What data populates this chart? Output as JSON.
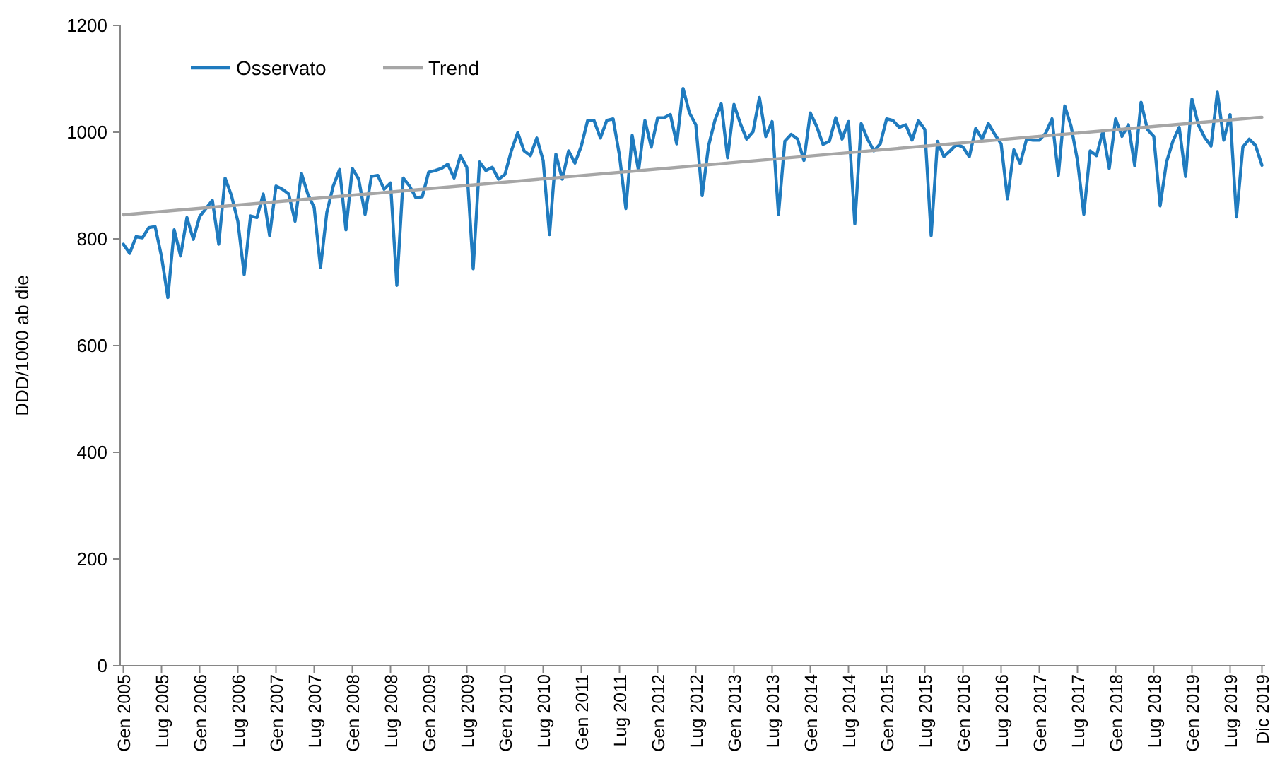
{
  "chart_data": {
    "type": "line",
    "ylabel": "DDD/1000 ab die",
    "ylim": [
      0,
      1200
    ],
    "yticks": [
      0,
      200,
      400,
      600,
      800,
      1000,
      1200
    ],
    "grid": false,
    "legend": "top left",
    "marker": "none",
    "line_style": "solid",
    "categories": [
      "Gen 2005",
      null,
      null,
      null,
      null,
      null,
      "Lug 2005",
      null,
      null,
      null,
      null,
      null,
      "Gen 2006",
      null,
      null,
      null,
      null,
      null,
      "Lug 2006",
      null,
      null,
      null,
      null,
      null,
      "Gen 2007",
      null,
      null,
      null,
      null,
      null,
      "Lug 2007",
      null,
      null,
      null,
      null,
      null,
      "Gen 2008",
      null,
      null,
      null,
      null,
      null,
      "Lug 2008",
      null,
      null,
      null,
      null,
      null,
      "Gen 2009",
      null,
      null,
      null,
      null,
      null,
      "Lug 2009",
      null,
      null,
      null,
      null,
      null,
      "Gen 2010",
      null,
      null,
      null,
      null,
      null,
      "Lug 2010",
      null,
      null,
      null,
      null,
      null,
      "Gen 2011",
      null,
      null,
      null,
      null,
      null,
      "Lug 2011",
      null,
      null,
      null,
      null,
      null,
      "Gen 2012",
      null,
      null,
      null,
      null,
      null,
      "Lug 2012",
      null,
      null,
      null,
      null,
      null,
      "Gen 2013",
      null,
      null,
      null,
      null,
      null,
      "Lug 2013",
      null,
      null,
      null,
      null,
      null,
      "Gen 2014",
      null,
      null,
      null,
      null,
      null,
      "Lug 2014",
      null,
      null,
      null,
      null,
      null,
      "Gen 2015",
      null,
      null,
      null,
      null,
      null,
      "Lug 2015",
      null,
      null,
      null,
      null,
      null,
      "Gen 2016",
      null,
      null,
      null,
      null,
      null,
      "Lug 2016",
      null,
      null,
      null,
      null,
      null,
      "Gen 2017",
      null,
      null,
      null,
      null,
      null,
      "Lug 2017",
      null,
      null,
      null,
      null,
      null,
      "Gen 2018",
      null,
      null,
      null,
      null,
      null,
      "Lug 2018",
      null,
      null,
      null,
      null,
      null,
      "Gen 2019",
      null,
      null,
      null,
      null,
      null,
      "Lug 2019",
      null,
      null,
      null,
      null,
      "Dic 2019"
    ],
    "series": [
      {
        "name": "Osservato",
        "color": "#1f7bbf",
        "values": [
          790,
          773,
          804,
          802,
          821,
          823,
          767,
          690,
          817,
          768,
          840,
          799,
          842,
          857,
          872,
          790,
          914,
          881,
          833,
          733,
          843,
          840,
          884,
          806,
          899,
          893,
          884,
          833,
          923,
          884,
          859,
          746,
          850,
          899,
          930,
          817,
          932,
          912,
          846,
          917,
          919,
          893,
          905,
          713,
          914,
          899,
          877,
          879,
          925,
          928,
          932,
          940,
          914,
          956,
          934,
          744,
          944,
          928,
          934,
          912,
          921,
          965,
          999,
          965,
          956,
          989,
          947,
          808,
          959,
          912,
          965,
          942,
          974,
          1022,
          1022,
          989,
          1022,
          1025,
          956,
          857,
          994,
          928,
          1022,
          972,
          1027,
          1027,
          1033,
          978,
          1082,
          1036,
          1014,
          881,
          974,
          1022,
          1053,
          952,
          1052,
          1016,
          987,
          1001,
          1065,
          992,
          1020,
          846,
          983,
          996,
          987,
          947,
          1036,
          1011,
          977,
          983,
          1027,
          987,
          1020,
          828,
          1016,
          987,
          965,
          978,
          1025,
          1022,
          1009,
          1014,
          985,
          1022,
          1005,
          806,
          983,
          954,
          965,
          977,
          972,
          954,
          1007,
          987,
          1016,
          996,
          978,
          875,
          967,
          941,
          987,
          985,
          985,
          998,
          1025,
          919,
          1049,
          1011,
          947,
          846,
          965,
          956,
          1002,
          932,
          1025,
          992,
          1014,
          937,
          1056,
          1005,
          992,
          862,
          944,
          983,
          1009,
          917,
          1062,
          1014,
          990,
          974,
          1075,
          985,
          1033,
          841,
          972,
          987,
          975,
          938
        ]
      },
      {
        "name": "Trend",
        "type": "line",
        "color": "#a6a6a6",
        "x": [
          "Gen 2005",
          "Dic 2019"
        ],
        "values": [
          845,
          1028
        ]
      }
    ]
  }
}
